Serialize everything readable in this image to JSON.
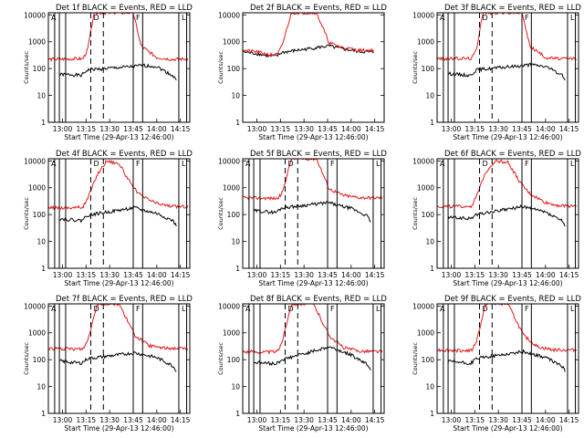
{
  "figure": {
    "background": "#ffffff",
    "series_colors": {
      "Events": "#000000",
      "LLD": "#e41a1c"
    },
    "x_tick_labels": [
      "13:00",
      "13:15",
      "13:30",
      "13:45",
      "14:00",
      "14:15"
    ],
    "y_tick_labels": [
      "1",
      "10",
      "100",
      "1000",
      "10000"
    ]
  },
  "chart_data": [
    {
      "type": "line",
      "title": "Det 1f BLACK = Events, RED = LLD",
      "xlabel": "Start Time (29-Apr-13 12:46:00)",
      "ylabel": "Counts/sec",
      "yscale": "log",
      "ylim": [
        1,
        12000
      ],
      "xlim": [
        "12:51",
        "14:21"
      ],
      "grid": false,
      "markers": [
        "A",
        "D",
        "F",
        "L"
      ],
      "series": [
        {
          "name": "Events",
          "x": [
            "12:58",
            "13:05",
            "13:12",
            "13:16",
            "13:46",
            "13:50",
            "14:00",
            "14:10",
            "14:13"
          ],
          "y": [
            60,
            60,
            55,
            90,
            120,
            130,
            120,
            55,
            35
          ]
        },
        {
          "name": "LLD",
          "x": [
            "12:51",
            "13:05",
            "13:13",
            "13:16",
            "13:20",
            "13:45",
            "13:50",
            "14:00",
            "14:10",
            "14:20"
          ],
          "y": [
            220,
            230,
            230,
            500,
            12000,
            12000,
            700,
            260,
            220,
            230
          ]
        }
      ]
    },
    {
      "type": "line",
      "title": "Det 2f BLACK = Events, RED = LLD",
      "xlabel": "Start Time (29-Apr-13 12:46:00)",
      "ylabel": "Counts/sec",
      "yscale": "log",
      "ylim": [
        1,
        12000
      ],
      "xlim": [
        "12:51",
        "14:21"
      ],
      "grid": false,
      "markers": [],
      "series": [
        {
          "name": "Events",
          "x": [
            "12:51",
            "13:00",
            "13:08",
            "13:13",
            "13:16",
            "13:46",
            "13:50",
            "14:05",
            "14:15"
          ],
          "y": [
            420,
            360,
            290,
            300,
            400,
            700,
            600,
            430,
            400
          ]
        },
        {
          "name": "LLD",
          "x": [
            "12:51",
            "13:00",
            "13:08",
            "13:13",
            "13:16",
            "13:22",
            "13:38",
            "13:46",
            "13:55",
            "14:05",
            "14:15"
          ],
          "y": [
            480,
            420,
            330,
            330,
            700,
            12000,
            12000,
            900,
            600,
            480,
            480
          ]
        }
      ]
    },
    {
      "type": "line",
      "title": "Det 3f BLACK = Events, RED = LLD",
      "xlabel": "Start Time (29-Apr-13 12:46:00)",
      "ylabel": "Counts/sec",
      "yscale": "log",
      "ylim": [
        1,
        12000
      ],
      "xlim": [
        "12:51",
        "14:21"
      ],
      "grid": false,
      "markers": [
        "A",
        "D",
        "F",
        "L"
      ],
      "series": [
        {
          "name": "Events",
          "x": [
            "12:58",
            "13:05",
            "13:12",
            "13:16",
            "13:46",
            "13:50",
            "14:00",
            "14:10",
            "14:13"
          ],
          "y": [
            65,
            60,
            55,
            90,
            130,
            140,
            120,
            60,
            35
          ]
        },
        {
          "name": "LLD",
          "x": [
            "12:51",
            "13:05",
            "13:13",
            "13:16",
            "13:20",
            "13:45",
            "13:50",
            "14:00",
            "14:10",
            "14:20"
          ],
          "y": [
            230,
            240,
            240,
            500,
            12000,
            12000,
            700,
            260,
            230,
            240
          ]
        }
      ]
    },
    {
      "type": "line",
      "title": "Det 4f BLACK = Events, RED = LLD",
      "xlabel": "Start Time (29-Apr-13 12:46:00)",
      "ylabel": "Counts/sec",
      "yscale": "log",
      "ylim": [
        1,
        12000
      ],
      "xlim": [
        "12:51",
        "14:21"
      ],
      "grid": false,
      "markers": [
        "A",
        "D",
        "F",
        "L"
      ],
      "series": [
        {
          "name": "Events",
          "x": [
            "12:58",
            "13:05",
            "13:12",
            "13:16",
            "13:46",
            "13:50",
            "14:00",
            "14:10",
            "14:13"
          ],
          "y": [
            70,
            65,
            60,
            95,
            180,
            150,
            110,
            60,
            35
          ]
        },
        {
          "name": "LLD",
          "x": [
            "12:51",
            "13:05",
            "13:13",
            "13:16",
            "13:22",
            "13:28",
            "13:36",
            "13:44",
            "13:50",
            "14:00",
            "14:10",
            "14:20"
          ],
          "y": [
            180,
            180,
            190,
            400,
            3000,
            10000,
            8000,
            1200,
            500,
            260,
            200,
            200
          ]
        }
      ]
    },
    {
      "type": "line",
      "title": "Det 5f BLACK = Events, RED = LLD",
      "xlabel": "Start Time (29-Apr-13 12:46:00)",
      "ylabel": "Counts/sec",
      "yscale": "log",
      "ylim": [
        1,
        12000
      ],
      "xlim": [
        "12:51",
        "14:21"
      ],
      "grid": false,
      "markers": [
        "A",
        "D",
        "F",
        "L"
      ],
      "series": [
        {
          "name": "Events",
          "x": [
            "12:58",
            "13:05",
            "13:12",
            "13:16",
            "13:46",
            "13:50",
            "14:00",
            "14:10",
            "14:13"
          ],
          "y": [
            140,
            130,
            120,
            180,
            280,
            230,
            170,
            90,
            50
          ]
        },
        {
          "name": "LLD",
          "x": [
            "12:51",
            "13:05",
            "13:13",
            "13:16",
            "13:22",
            "13:38",
            "13:46",
            "13:55",
            "14:05",
            "14:20"
          ],
          "y": [
            420,
            410,
            400,
            600,
            12000,
            12000,
            900,
            520,
            430,
            420
          ]
        }
      ]
    },
    {
      "type": "line",
      "title": "Det 6f BLACK = Events, RED = LLD",
      "xlabel": "Start Time (29-Apr-13 12:46:00)",
      "ylabel": "Counts/sec",
      "yscale": "log",
      "ylim": [
        1,
        12000
      ],
      "xlim": [
        "12:51",
        "14:21"
      ],
      "grid": false,
      "markers": [
        "A",
        "D",
        "F",
        "L"
      ],
      "series": [
        {
          "name": "Events",
          "x": [
            "12:58",
            "13:05",
            "13:12",
            "13:16",
            "13:46",
            "13:50",
            "14:00",
            "14:10",
            "14:13"
          ],
          "y": [
            80,
            75,
            70,
            100,
            200,
            170,
            120,
            60,
            35
          ]
        },
        {
          "name": "LLD",
          "x": [
            "12:51",
            "13:05",
            "13:13",
            "13:16",
            "13:22",
            "13:28",
            "13:36",
            "13:44",
            "13:50",
            "14:00",
            "14:10",
            "14:20"
          ],
          "y": [
            200,
            200,
            210,
            450,
            4000,
            10000,
            9000,
            1500,
            600,
            280,
            210,
            220
          ]
        }
      ]
    },
    {
      "type": "line",
      "title": "Det 7f BLACK = Events, RED = LLD",
      "xlabel": "Start Time (29-Apr-13 12:46:00)",
      "ylabel": "Counts/sec",
      "yscale": "log",
      "ylim": [
        1,
        12000
      ],
      "xlim": [
        "12:51",
        "14:21"
      ],
      "grid": false,
      "markers": [
        "A",
        "D",
        "F",
        "L"
      ],
      "series": [
        {
          "name": "Events",
          "x": [
            "12:58",
            "13:05",
            "13:12",
            "13:16",
            "13:46",
            "13:50",
            "14:00",
            "14:10",
            "14:13"
          ],
          "y": [
            90,
            80,
            75,
            110,
            180,
            160,
            120,
            60,
            35
          ]
        },
        {
          "name": "LLD",
          "x": [
            "12:51",
            "13:05",
            "13:13",
            "13:16",
            "13:22",
            "13:36",
            "13:46",
            "13:55",
            "14:05",
            "14:20"
          ],
          "y": [
            260,
            250,
            250,
            500,
            12000,
            12000,
            800,
            330,
            270,
            260
          ]
        }
      ]
    },
    {
      "type": "line",
      "title": "Det 8f BLACK = Events, RED = LLD",
      "xlabel": "Start Time (29-Apr-13 12:46:00)",
      "ylabel": "Counts/sec",
      "yscale": "log",
      "ylim": [
        1,
        12000
      ],
      "xlim": [
        "12:51",
        "14:21"
      ],
      "grid": false,
      "markers": [
        "A",
        "D",
        "F",
        "L"
      ],
      "series": [
        {
          "name": "Events",
          "x": [
            "12:58",
            "13:05",
            "13:12",
            "13:16",
            "13:46",
            "13:50",
            "14:00",
            "14:10",
            "14:13"
          ],
          "y": [
            80,
            75,
            70,
            100,
            300,
            250,
            150,
            70,
            40
          ]
        },
        {
          "name": "LLD",
          "x": [
            "12:51",
            "13:05",
            "13:13",
            "13:16",
            "13:22",
            "13:36",
            "13:46",
            "13:55",
            "14:05",
            "14:20"
          ],
          "y": [
            200,
            190,
            200,
            450,
            12000,
            12000,
            800,
            280,
            210,
            200
          ]
        }
      ]
    },
    {
      "type": "line",
      "title": "Det 9f BLACK = Events, RED = LLD",
      "xlabel": "Start Time (29-Apr-13 12:46:00)",
      "ylabel": "Counts/sec",
      "yscale": "log",
      "ylim": [
        1,
        12000
      ],
      "xlim": [
        "12:51",
        "14:21"
      ],
      "grid": false,
      "markers": [
        "A",
        "D",
        "F",
        "L"
      ],
      "series": [
        {
          "name": "Events",
          "x": [
            "12:58",
            "13:05",
            "13:12",
            "13:16",
            "13:46",
            "13:50",
            "14:00",
            "14:10",
            "14:13"
          ],
          "y": [
            85,
            80,
            70,
            110,
            200,
            170,
            120,
            60,
            35
          ]
        },
        {
          "name": "LLD",
          "x": [
            "12:51",
            "13:05",
            "13:13",
            "13:16",
            "13:22",
            "13:36",
            "13:46",
            "13:55",
            "14:05",
            "14:20"
          ],
          "y": [
            230,
            220,
            220,
            480,
            12000,
            12000,
            800,
            300,
            230,
            230
          ]
        }
      ]
    }
  ]
}
